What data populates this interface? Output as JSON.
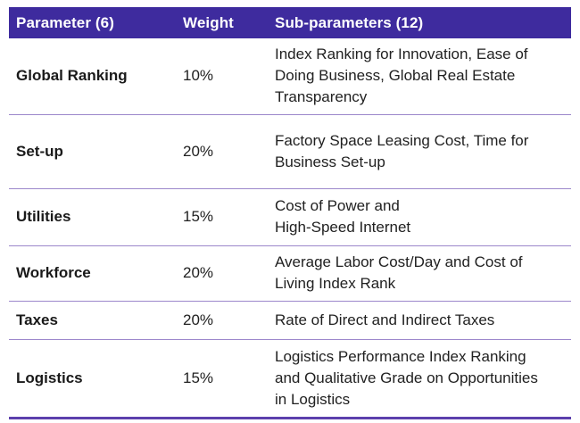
{
  "colors": {
    "header_background": "#3e2b9e",
    "header_text": "#ffffff",
    "body_text": "#212121",
    "row_divider": "#9c87cb",
    "bottom_border": "#5c40ad",
    "page_background": "#ffffff"
  },
  "table": {
    "headers": {
      "parameter": "Parameter (6)",
      "weight": "Weight",
      "sub_parameters": "Sub-parameters (12)"
    },
    "rows": [
      {
        "parameter": "Global Ranking",
        "weight": "10%",
        "sub_parameters": "Index Ranking for Innovation, Ease of\nDoing Business, Global Real Estate\nTransparency"
      },
      {
        "parameter": "Set-up",
        "weight": "20%",
        "sub_parameters": "Factory Space Leasing Cost, Time for\nBusiness Set-up"
      },
      {
        "parameter": "Utilities",
        "weight": "15%",
        "sub_parameters": "Cost of Power and\nHigh-Speed Internet"
      },
      {
        "parameter": "Workforce",
        "weight": "20%",
        "sub_parameters": "Average Labor Cost/Day and Cost of\nLiving Index Rank"
      },
      {
        "parameter": "Taxes",
        "weight": "20%",
        "sub_parameters": "Rate of Direct and Indirect Taxes"
      },
      {
        "parameter": "Logistics",
        "weight": "15%",
        "sub_parameters": "Logistics Performance Index Ranking\nand Qualitative Grade on Opportunities\nin Logistics"
      }
    ]
  }
}
